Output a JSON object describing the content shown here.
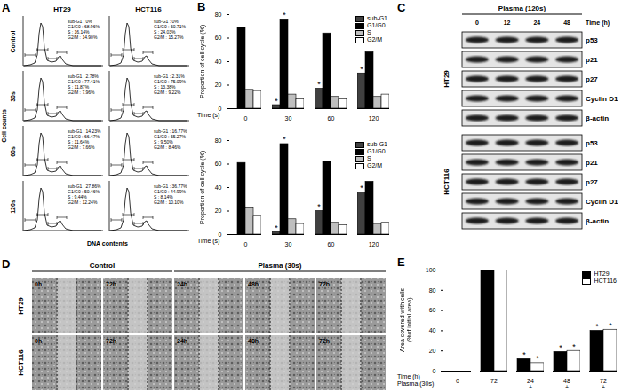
{
  "chart_data": [
    {
      "type": "bar",
      "title": "B",
      "x_label": "Time (s)",
      "y_label": "Proportion of cell cycle (%)",
      "categories": [
        "0",
        "30",
        "60",
        "120"
      ],
      "series": [
        {
          "name": "sub-G1",
          "color": "#404040",
          "values": [
            0,
            3,
            17,
            30
          ]
        },
        {
          "name": "G1/G0",
          "color": "#000000",
          "values": [
            69,
            76,
            64,
            48
          ]
        },
        {
          "name": "S",
          "color": "#bfbfbf",
          "values": [
            16,
            12,
            10,
            10
          ]
        },
        {
          "name": "G2/M",
          "color": "#ffffff",
          "values": [
            15,
            8,
            8,
            12
          ]
        }
      ],
      "ylim": [
        0,
        80
      ],
      "yticks": [
        0,
        20,
        40,
        60,
        80
      ],
      "grid": false,
      "legend": "top-right",
      "annotations": [
        {
          "x": 1,
          "series": "sub-G1",
          "text": "*"
        },
        {
          "x": 1,
          "series": "G1/G0",
          "text": "*"
        },
        {
          "x": 2,
          "series": "sub-G1",
          "text": "*"
        },
        {
          "x": 3,
          "series": "sub-G1",
          "text": "*"
        }
      ]
    },
    {
      "type": "bar",
      "x_label": "Time (s)",
      "y_label": "Proportion of cell cycle (%)",
      "categories": [
        "0",
        "30",
        "60",
        "120"
      ],
      "series": [
        {
          "name": "sub-G1",
          "color": "#404040",
          "values": [
            0,
            2,
            20,
            36
          ]
        },
        {
          "name": "G1/G0",
          "color": "#000000",
          "values": [
            61,
            77,
            62,
            45
          ]
        },
        {
          "name": "S",
          "color": "#bfbfbf",
          "values": [
            23,
            13,
            10,
            9
          ]
        },
        {
          "name": "G2/M",
          "color": "#ffffff",
          "values": [
            16,
            9,
            8,
            10
          ]
        }
      ],
      "ylim": [
        0,
        80
      ],
      "yticks": [
        0,
        20,
        40,
        60,
        80
      ],
      "grid": false,
      "legend": "top-right",
      "annotations": [
        {
          "x": 1,
          "series": "sub-G1",
          "text": "*"
        },
        {
          "x": 1,
          "series": "G1/G0",
          "text": "*"
        },
        {
          "x": 2,
          "series": "sub-G1",
          "text": "*"
        },
        {
          "x": 3,
          "series": "sub-G1",
          "text": "*"
        }
      ]
    },
    {
      "type": "bar",
      "title": "E",
      "x_label": "Time (h)",
      "x2_label": "Plasma (30s)",
      "y_label": "Area covered with cells (%of initial area)",
      "categories": [
        "0",
        "72",
        "24",
        "48",
        "72"
      ],
      "categories2": [
        "-",
        "-",
        "+",
        "+",
        "+"
      ],
      "series": [
        {
          "name": "HT29",
          "color": "#000000",
          "values": [
            0,
            100,
            12,
            19,
            40
          ]
        },
        {
          "name": "HCT116",
          "color": "#ffffff",
          "values": [
            0,
            100,
            8,
            20,
            41
          ]
        }
      ],
      "ylim": [
        0,
        100
      ],
      "yticks": [
        0,
        20,
        40,
        60,
        80,
        100
      ],
      "grid": false,
      "legend": "top-right",
      "annotations": [
        {
          "x": 2,
          "series": "HT29",
          "text": "*"
        },
        {
          "x": 2,
          "series": "HCT116",
          "text": "*"
        },
        {
          "x": 3,
          "series": "HT29",
          "text": "*"
        },
        {
          "x": 3,
          "series": "HCT116",
          "text": "*"
        },
        {
          "x": 4,
          "series": "HT29",
          "text": "*"
        },
        {
          "x": 4,
          "series": "HCT116",
          "text": "*"
        }
      ]
    }
  ],
  "panel_a": {
    "title": "A",
    "columns": [
      "HT29",
      "HCT116"
    ],
    "rows": [
      "Control",
      "30s",
      "60s",
      "120s"
    ],
    "y_label": "Cell counts",
    "x_label": "DNA contents",
    "gate_labels": [
      [
        [
          "sub-G1 : 0%",
          "G1/G0 : 68.96%",
          "S : 16.14%",
          "G2/M : 14.90%"
        ],
        [
          "sub-G1 : 2.78%",
          "G1/G0 : 77.41%",
          "S : 11.87%",
          "G2/M : 7.96%"
        ],
        [
          "sub-G1 : 14.23%",
          "G1/G0 : 66.47%",
          "S : 11.64%",
          "G2/M : 7.66%"
        ],
        [
          "sub-G1 : 27.86%",
          "G1/G0 : 50.46%",
          "S : 9.44%",
          "G2/M : 12.24%"
        ]
      ],
      [
        [
          "sub-G1 : 0%",
          "G1/G0 : 60.71%",
          "S : 24.03%",
          "G2/M : 15.27%"
        ],
        [
          "sub-G1 : 2.31%",
          "G1/G0 : 75.09%",
          "S : 13.38%",
          "G2/M : 9.22%"
        ],
        [
          "sub-G1 : 16.77%",
          "G1/G0 : 65.27%",
          "S : 9.50%",
          "G2/M : 8.46%"
        ],
        [
          "sub-G1 : 36.77%",
          "G1/G0 : 44.99%",
          "S : 8.14%",
          "G2/M : 10.10%"
        ]
      ]
    ]
  },
  "panel_c": {
    "title": "C",
    "treatment": "Plasma (120s)",
    "time_label": "Time (h)",
    "times": [
      "0",
      "12",
      "24",
      "48"
    ],
    "cell_lines": [
      "HT29",
      "HCT116"
    ],
    "proteins": [
      "p53",
      "p21",
      "p27",
      "Cyclin D1",
      "β-actin"
    ]
  },
  "panel_d": {
    "title": "D",
    "cell_lines": [
      "HT29",
      "HCT116"
    ],
    "groups": [
      {
        "label": "Control",
        "images": [
          "0h",
          "72h"
        ]
      },
      {
        "label": "Plasma (30s)",
        "images": [
          "24h",
          "48h",
          "72h"
        ]
      }
    ]
  }
}
